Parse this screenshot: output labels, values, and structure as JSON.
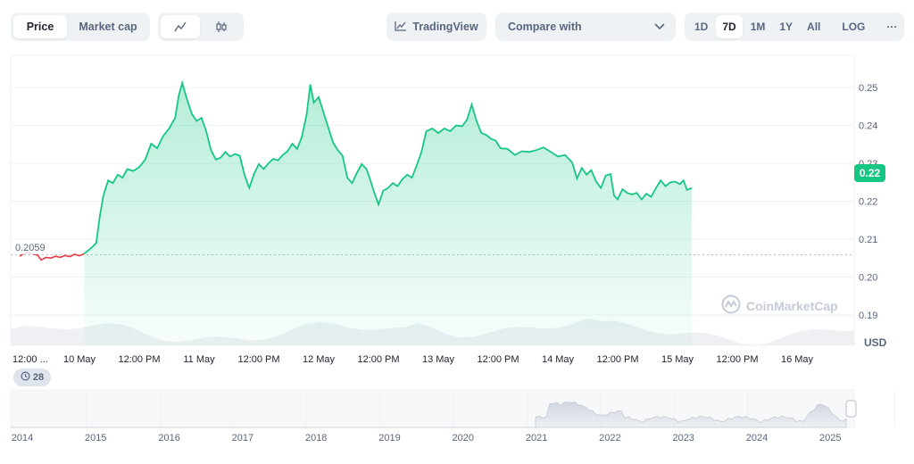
{
  "toolbar": {
    "type_tabs": [
      {
        "label": "Price",
        "active": true
      },
      {
        "label": "Market cap",
        "active": false
      }
    ],
    "chart_style": [
      {
        "icon": "line-chart-icon",
        "active": true
      },
      {
        "icon": "candlestick-icon",
        "active": false
      }
    ],
    "tradingview_label": "TradingView",
    "compare_placeholder": "Compare with",
    "ranges": [
      {
        "label": "1D",
        "active": false
      },
      {
        "label": "7D",
        "active": true
      },
      {
        "label": "1M",
        "active": false
      },
      {
        "label": "1Y",
        "active": false
      },
      {
        "label": "All",
        "active": false
      }
    ],
    "log_label": "LOG",
    "more_label": "···"
  },
  "watermark_text": "CoinMarketCap",
  "currency_label": "USD",
  "current_price_label": "0.22",
  "reference_label": "0.2059",
  "events_badge": "28",
  "colors": {
    "up": "#16c784",
    "down": "#ea3943",
    "grid": "#eff2f5",
    "muted": "#58667e"
  },
  "chart_data": {
    "type": "line",
    "ylim": [
      0.182,
      0.2585
    ],
    "xlim": [
      0,
      7
    ],
    "y_ticks": [
      0.25,
      0.24,
      0.23,
      0.22,
      0.21,
      0.2,
      0.19
    ],
    "y_tick_labels": [
      "0.25",
      "0.24",
      "0.23",
      "0.22",
      "0.21",
      "0.20",
      "0.19"
    ],
    "x_ticks": [
      {
        "pos": 0.0,
        "label": "12:00 ..."
      },
      {
        "pos": 0.5,
        "label": "10 May"
      },
      {
        "pos": 1.0,
        "label": "12:00 PM"
      },
      {
        "pos": 1.5,
        "label": "11 May"
      },
      {
        "pos": 2.0,
        "label": "12:00 PM"
      },
      {
        "pos": 2.5,
        "label": "12 May"
      },
      {
        "pos": 3.0,
        "label": "12:00 PM"
      },
      {
        "pos": 3.5,
        "label": "13 May"
      },
      {
        "pos": 4.0,
        "label": "12:00 PM"
      },
      {
        "pos": 4.5,
        "label": "14 May"
      },
      {
        "pos": 5.0,
        "label": "12:00 PM"
      },
      {
        "pos": 5.5,
        "label": "15 May"
      },
      {
        "pos": 6.0,
        "label": "12:00 PM"
      },
      {
        "pos": 6.5,
        "label": "16 May"
      }
    ],
    "reference_value": 0.2059,
    "current_value": 0.22,
    "series_before": [
      [
        0.0,
        0.2055
      ],
      [
        0.05,
        0.2065
      ],
      [
        0.1,
        0.2062
      ],
      [
        0.15,
        0.2058
      ],
      [
        0.18,
        0.2045
      ],
      [
        0.22,
        0.2052
      ],
      [
        0.26,
        0.205
      ],
      [
        0.3,
        0.2055
      ],
      [
        0.34,
        0.2052
      ],
      [
        0.38,
        0.2057
      ],
      [
        0.42,
        0.2054
      ],
      [
        0.46,
        0.206
      ],
      [
        0.5,
        0.2056
      ],
      [
        0.54,
        0.2062
      ]
    ],
    "series": [
      [
        0.54,
        0.2062
      ],
      [
        0.58,
        0.2072
      ],
      [
        0.61,
        0.208
      ],
      [
        0.64,
        0.209
      ],
      [
        0.67,
        0.216
      ],
      [
        0.7,
        0.2215
      ],
      [
        0.74,
        0.2255
      ],
      [
        0.78,
        0.2248
      ],
      [
        0.82,
        0.227
      ],
      [
        0.86,
        0.2262
      ],
      [
        0.9,
        0.2285
      ],
      [
        0.95,
        0.228
      ],
      [
        1.0,
        0.229
      ],
      [
        1.05,
        0.231
      ],
      [
        1.1,
        0.2352
      ],
      [
        1.15,
        0.234
      ],
      [
        1.2,
        0.2372
      ],
      [
        1.25,
        0.2392
      ],
      [
        1.3,
        0.242
      ],
      [
        1.33,
        0.2478
      ],
      [
        1.36,
        0.2512
      ],
      [
        1.4,
        0.2468
      ],
      [
        1.44,
        0.243
      ],
      [
        1.48,
        0.2412
      ],
      [
        1.52,
        0.242
      ],
      [
        1.56,
        0.2385
      ],
      [
        1.6,
        0.2335
      ],
      [
        1.64,
        0.231
      ],
      [
        1.68,
        0.2315
      ],
      [
        1.72,
        0.233
      ],
      [
        1.76,
        0.2318
      ],
      [
        1.8,
        0.2325
      ],
      [
        1.84,
        0.232
      ],
      [
        1.88,
        0.227
      ],
      [
        1.92,
        0.2235
      ],
      [
        1.96,
        0.2272
      ],
      [
        2.0,
        0.2298
      ],
      [
        2.04,
        0.2285
      ],
      [
        2.08,
        0.23
      ],
      [
        2.12,
        0.2312
      ],
      [
        2.16,
        0.2308
      ],
      [
        2.2,
        0.2322
      ],
      [
        2.24,
        0.2332
      ],
      [
        2.28,
        0.2352
      ],
      [
        2.32,
        0.2338
      ],
      [
        2.36,
        0.237
      ],
      [
        2.4,
        0.243
      ],
      [
        2.43,
        0.2508
      ],
      [
        2.46,
        0.246
      ],
      [
        2.5,
        0.2475
      ],
      [
        2.53,
        0.2445
      ],
      [
        2.57,
        0.2405
      ],
      [
        2.62,
        0.2355
      ],
      [
        2.66,
        0.2335
      ],
      [
        2.7,
        0.232
      ],
      [
        2.74,
        0.2262
      ],
      [
        2.78,
        0.2248
      ],
      [
        2.82,
        0.2275
      ],
      [
        2.86,
        0.2298
      ],
      [
        2.9,
        0.2285
      ],
      [
        2.93,
        0.2258
      ],
      [
        2.96,
        0.2228
      ],
      [
        3.0,
        0.2192
      ],
      [
        3.04,
        0.2228
      ],
      [
        3.08,
        0.2235
      ],
      [
        3.12,
        0.2248
      ],
      [
        3.16,
        0.224
      ],
      [
        3.2,
        0.2258
      ],
      [
        3.24,
        0.227
      ],
      [
        3.28,
        0.2262
      ],
      [
        3.32,
        0.2295
      ],
      [
        3.36,
        0.233
      ],
      [
        3.4,
        0.2385
      ],
      [
        3.45,
        0.2392
      ],
      [
        3.5,
        0.238
      ],
      [
        3.55,
        0.2392
      ],
      [
        3.6,
        0.2385
      ],
      [
        3.65,
        0.24
      ],
      [
        3.7,
        0.2398
      ],
      [
        3.74,
        0.2415
      ],
      [
        3.78,
        0.2455
      ],
      [
        3.82,
        0.2412
      ],
      [
        3.86,
        0.238
      ],
      [
        3.9,
        0.2375
      ],
      [
        3.94,
        0.2365
      ],
      [
        3.98,
        0.236
      ],
      [
        4.02,
        0.234
      ],
      [
        4.08,
        0.2338
      ],
      [
        4.14,
        0.2322
      ],
      [
        4.2,
        0.2332
      ],
      [
        4.26,
        0.233
      ],
      [
        4.32,
        0.2335
      ],
      [
        4.38,
        0.2342
      ],
      [
        4.44,
        0.233
      ],
      [
        4.5,
        0.2318
      ],
      [
        4.56,
        0.2322
      ],
      [
        4.62,
        0.2302
      ],
      [
        4.66,
        0.226
      ],
      [
        4.7,
        0.2288
      ],
      [
        4.74,
        0.227
      ],
      [
        4.78,
        0.2282
      ],
      [
        4.82,
        0.2252
      ],
      [
        4.86,
        0.2235
      ],
      [
        4.9,
        0.2268
      ],
      [
        4.94,
        0.2272
      ],
      [
        4.97,
        0.2215
      ],
      [
        5.0,
        0.2205
      ],
      [
        5.04,
        0.2232
      ],
      [
        5.08,
        0.2222
      ],
      [
        5.12,
        0.2218
      ],
      [
        5.16,
        0.2222
      ],
      [
        5.2,
        0.2205
      ],
      [
        5.24,
        0.222
      ],
      [
        5.28,
        0.2212
      ],
      [
        5.32,
        0.2235
      ],
      [
        5.36,
        0.2255
      ],
      [
        5.4,
        0.224
      ],
      [
        5.44,
        0.225
      ],
      [
        5.48,
        0.2252
      ],
      [
        5.52,
        0.2245
      ],
      [
        5.55,
        0.2255
      ],
      [
        5.58,
        0.223
      ],
      [
        5.62,
        0.2235
      ]
    ]
  },
  "navigator": {
    "years": [
      "2014",
      "2015",
      "2016",
      "2017",
      "2018",
      "2019",
      "2020",
      "2021",
      "2022",
      "2023",
      "2024",
      "2025"
    ]
  }
}
